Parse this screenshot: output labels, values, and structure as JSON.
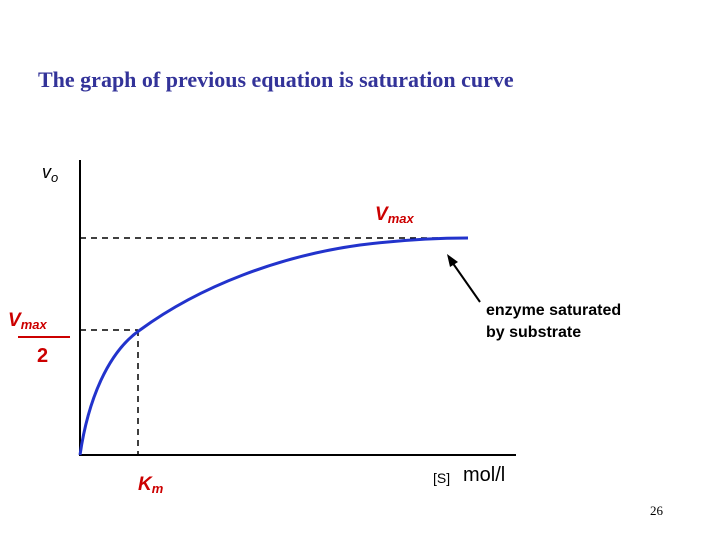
{
  "title": "The graph of previous equation is saturation curve",
  "y_axis_label": {
    "main": "v",
    "sub": "o"
  },
  "x_axis_label": {
    "bracket": "[S]",
    "unit": "mol/l"
  },
  "vmax_label": {
    "main": "V",
    "sub": "max"
  },
  "half_vmax_label": {
    "main": "V",
    "sub": "max",
    "denominator": "2"
  },
  "km_label": {
    "main": "K",
    "sub": "m"
  },
  "annotation": {
    "line1": "enzyme saturated",
    "line2": "by substrate"
  },
  "page_number": "26"
}
